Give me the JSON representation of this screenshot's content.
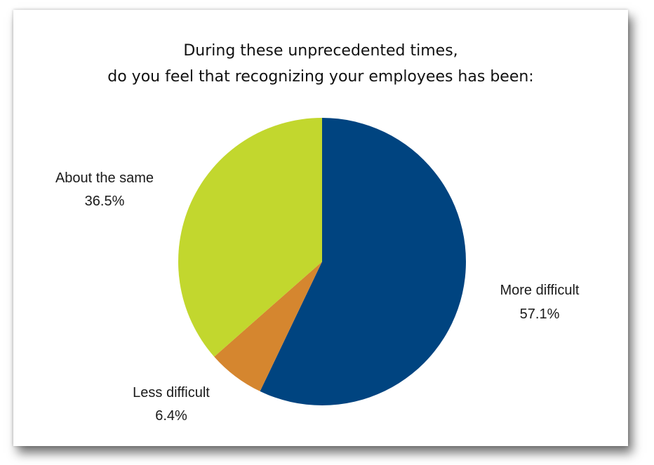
{
  "chart_data": {
    "type": "pie",
    "title_lines": [
      "During these unprecedented times,",
      "do you feel that recognizing your employees has been:"
    ],
    "slices": [
      {
        "label": "More difficult",
        "value": 57.1,
        "value_label": "57.1%",
        "color": "#004480"
      },
      {
        "label": "Less difficult",
        "value": 6.4,
        "value_label": "6.4%",
        "color": "#D5862F"
      },
      {
        "label": "About the same",
        "value": 36.5,
        "value_label": "36.5%",
        "color": "#C2D72E"
      }
    ],
    "start_angle_deg": 0,
    "direction": "clockwise",
    "legend": "none"
  }
}
